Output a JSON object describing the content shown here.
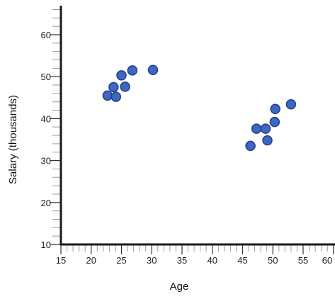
{
  "chart_data": {
    "type": "scatter",
    "xlabel": "Age",
    "ylabel": "Salary (thousands)",
    "xlim": [
      15,
      61
    ],
    "ylim": [
      10,
      67
    ],
    "x_ticks": [
      15,
      20,
      25,
      30,
      35,
      40,
      45,
      50,
      55,
      60
    ],
    "x_tick_labels": [
      "15",
      "20",
      "25",
      "30",
      "35",
      "40",
      "45",
      "50",
      "55",
      "60"
    ],
    "y_ticks": [
      10,
      20,
      30,
      40,
      50,
      60
    ],
    "y_tick_labels": [
      "10",
      "20",
      "30",
      "40",
      "50",
      "60"
    ],
    "grid": false,
    "marker_color": "#3f66c0",
    "marker_edge_color": "#1f3f8c",
    "points": [
      {
        "x": 22.7,
        "y": 45.5
      },
      {
        "x": 23.7,
        "y": 47.5
      },
      {
        "x": 24.1,
        "y": 45.2
      },
      {
        "x": 25.0,
        "y": 50.3
      },
      {
        "x": 25.6,
        "y": 47.6
      },
      {
        "x": 26.8,
        "y": 51.5
      },
      {
        "x": 30.2,
        "y": 51.6
      },
      {
        "x": 46.3,
        "y": 33.5
      },
      {
        "x": 47.3,
        "y": 37.6
      },
      {
        "x": 48.8,
        "y": 37.6
      },
      {
        "x": 49.1,
        "y": 34.8
      },
      {
        "x": 50.3,
        "y": 39.2
      },
      {
        "x": 50.4,
        "y": 42.3
      },
      {
        "x": 53.0,
        "y": 43.4
      }
    ]
  }
}
